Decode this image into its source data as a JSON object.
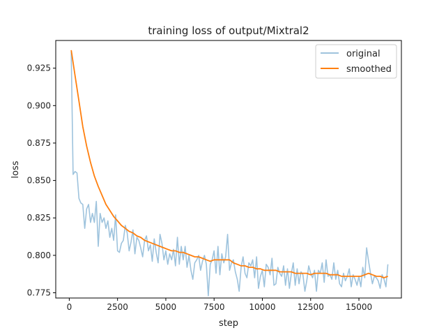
{
  "chart_data": {
    "type": "line",
    "title": "training loss of output/Mixtral2",
    "xlabel": "step",
    "ylabel": "loss",
    "xlim": [
      -700,
      17200
    ],
    "ylim": [
      0.7715,
      0.9435
    ],
    "xticks": [
      0,
      2500,
      5000,
      7500,
      10000,
      12500,
      15000
    ],
    "xtick_labels": [
      "0",
      "2500",
      "5000",
      "7500",
      "10000",
      "12500",
      "15000"
    ],
    "yticks": [
      0.775,
      0.8,
      0.825,
      0.85,
      0.875,
      0.9,
      0.925
    ],
    "ytick_labels": [
      "0.775",
      "0.800",
      "0.825",
      "0.850",
      "0.875",
      "0.900",
      "0.925"
    ],
    "grid": false,
    "legend_position": "top-right",
    "series": [
      {
        "name": "original",
        "color": "#9ec3dd",
        "x": [
          100,
          200,
          300,
          400,
          500,
          600,
          700,
          800,
          900,
          1000,
          1100,
          1200,
          1300,
          1400,
          1500,
          1600,
          1700,
          1800,
          1900,
          2000,
          2100,
          2200,
          2300,
          2400,
          2500,
          2600,
          2700,
          2800,
          2900,
          3000,
          3100,
          3200,
          3300,
          3400,
          3500,
          3600,
          3700,
          3800,
          3900,
          4000,
          4100,
          4200,
          4300,
          4400,
          4500,
          4600,
          4700,
          4800,
          4900,
          5000,
          5100,
          5200,
          5300,
          5400,
          5500,
          5600,
          5700,
          5800,
          5900,
          6000,
          6100,
          6200,
          6300,
          6400,
          6500,
          6600,
          6700,
          6800,
          6900,
          7000,
          7100,
          7200,
          7300,
          7400,
          7500,
          7600,
          7700,
          7800,
          7900,
          8000,
          8100,
          8200,
          8300,
          8400,
          8500,
          8600,
          8700,
          8800,
          8900,
          9000,
          9100,
          9200,
          9300,
          9400,
          9500,
          9600,
          9700,
          9800,
          9900,
          10000,
          10100,
          10200,
          10300,
          10400,
          10500,
          10600,
          10700,
          10800,
          10900,
          11000,
          11100,
          11200,
          11300,
          11400,
          11500,
          11600,
          11700,
          11800,
          11900,
          12000,
          12100,
          12200,
          12300,
          12400,
          12500,
          12600,
          12700,
          12800,
          12900,
          13000,
          13100,
          13200,
          13300,
          13400,
          13500,
          13600,
          13700,
          13800,
          13900,
          14000,
          14100,
          14200,
          14300,
          14400,
          14500,
          14600,
          14700,
          14800,
          14900,
          15000,
          15100,
          15200,
          15300,
          15400,
          15500,
          15600,
          15700,
          15800,
          15900,
          16000,
          16100,
          16200,
          16300,
          16400,
          16500
        ],
        "y": [
          0.936,
          0.854,
          0.856,
          0.855,
          0.838,
          0.835,
          0.834,
          0.818,
          0.831,
          0.834,
          0.822,
          0.828,
          0.822,
          0.836,
          0.806,
          0.828,
          0.822,
          0.825,
          0.818,
          0.823,
          0.812,
          0.818,
          0.81,
          0.827,
          0.803,
          0.802,
          0.808,
          0.81,
          0.82,
          0.815,
          0.803,
          0.809,
          0.817,
          0.801,
          0.812,
          0.81,
          0.805,
          0.799,
          0.81,
          0.813,
          0.803,
          0.807,
          0.796,
          0.811,
          0.802,
          0.795,
          0.814,
          0.808,
          0.797,
          0.803,
          0.794,
          0.801,
          0.797,
          0.804,
          0.793,
          0.812,
          0.794,
          0.806,
          0.797,
          0.806,
          0.792,
          0.8,
          0.79,
          0.784,
          0.795,
          0.797,
          0.8,
          0.79,
          0.796,
          0.8,
          0.794,
          0.773,
          0.794,
          0.797,
          0.803,
          0.788,
          0.806,
          0.787,
          0.801,
          0.795,
          0.799,
          0.814,
          0.79,
          0.795,
          0.797,
          0.789,
          0.784,
          0.776,
          0.792,
          0.799,
          0.788,
          0.785,
          0.795,
          0.793,
          0.797,
          0.785,
          0.799,
          0.778,
          0.786,
          0.79,
          0.779,
          0.794,
          0.792,
          0.787,
          0.798,
          0.78,
          0.781,
          0.792,
          0.788,
          0.786,
          0.793,
          0.78,
          0.791,
          0.778,
          0.788,
          0.795,
          0.78,
          0.791,
          0.781,
          0.789,
          0.787,
          0.776,
          0.783,
          0.793,
          0.788,
          0.785,
          0.79,
          0.776,
          0.79,
          0.788,
          0.795,
          0.782,
          0.797,
          0.786,
          0.787,
          0.784,
          0.795,
          0.784,
          0.79,
          0.781,
          0.779,
          0.788,
          0.783,
          0.786,
          0.791,
          0.779,
          0.787,
          0.784,
          0.78,
          0.786,
          0.779,
          0.792,
          0.785,
          0.805,
          0.796,
          0.788,
          0.781,
          0.786,
          0.785,
          0.783,
          0.778,
          0.787,
          0.784,
          0.779,
          0.794
        ]
      },
      {
        "name": "smoothed",
        "color": "#ff7f0e",
        "x": [
          100,
          300,
          500,
          700,
          900,
          1100,
          1300,
          1500,
          1700,
          1900,
          2100,
          2300,
          2500,
          2700,
          2900,
          3100,
          3300,
          3500,
          3700,
          3900,
          4100,
          4300,
          4500,
          4700,
          4900,
          5100,
          5300,
          5500,
          5700,
          5900,
          6100,
          6300,
          6500,
          6700,
          6900,
          7100,
          7300,
          7500,
          7700,
          7900,
          8100,
          8300,
          8500,
          8700,
          8900,
          9100,
          9300,
          9500,
          9700,
          9900,
          10100,
          10300,
          10500,
          10700,
          10900,
          11100,
          11300,
          11500,
          11700,
          11900,
          12100,
          12300,
          12500,
          12700,
          12900,
          13100,
          13300,
          13500,
          13700,
          13900,
          14100,
          14300,
          14500,
          14700,
          14900,
          15100,
          15300,
          15500,
          15700,
          15900,
          16100,
          16300,
          16500
        ],
        "y": [
          0.937,
          0.92,
          0.903,
          0.886,
          0.873,
          0.862,
          0.853,
          0.846,
          0.84,
          0.834,
          0.83,
          0.826,
          0.823,
          0.82,
          0.818,
          0.816,
          0.815,
          0.813,
          0.812,
          0.81,
          0.809,
          0.808,
          0.807,
          0.806,
          0.805,
          0.804,
          0.803,
          0.803,
          0.802,
          0.802,
          0.801,
          0.8,
          0.799,
          0.799,
          0.798,
          0.797,
          0.796,
          0.797,
          0.797,
          0.797,
          0.797,
          0.797,
          0.795,
          0.794,
          0.793,
          0.793,
          0.792,
          0.792,
          0.791,
          0.791,
          0.79,
          0.79,
          0.79,
          0.79,
          0.789,
          0.789,
          0.789,
          0.789,
          0.788,
          0.788,
          0.788,
          0.788,
          0.787,
          0.788,
          0.788,
          0.788,
          0.788,
          0.787,
          0.787,
          0.787,
          0.786,
          0.786,
          0.786,
          0.786,
          0.786,
          0.786,
          0.787,
          0.788,
          0.787,
          0.786,
          0.786,
          0.785,
          0.786
        ]
      }
    ]
  }
}
